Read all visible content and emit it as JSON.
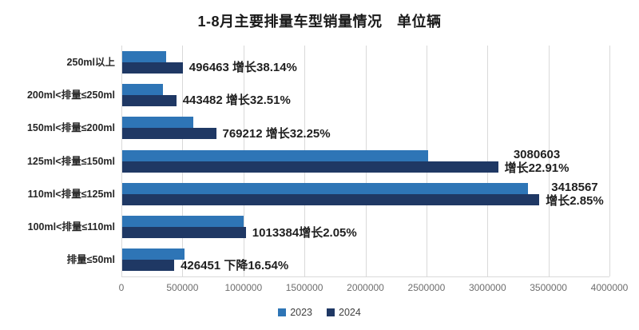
{
  "page": {
    "background": "#ffffff"
  },
  "chart_data": {
    "type": "bar",
    "orientation": "horizontal",
    "title": "1-8月主要排量车型销量情况　单位辆",
    "categories": [
      "250ml以上",
      "200ml<排量≤250ml",
      "150ml<排量≤200ml",
      "125ml<排量≤150ml",
      "110ml<排量≤125ml",
      "100ml<排量≤110ml",
      "排量≤50ml"
    ],
    "series": [
      {
        "name": "2023",
        "color": "#2E75B6",
        "values_estimated_from_bars": true,
        "values": [
          359390,
          334678,
          581635,
          2506389,
          3323838,
          993027,
          510964
        ]
      },
      {
        "name": "2024",
        "color": "#1F3864",
        "values": [
          496463,
          443482,
          769212,
          3080603,
          3418567,
          1013384,
          426451
        ]
      }
    ],
    "data_labels": [
      {
        "lines": [
          "496463 增长38.14%"
        ]
      },
      {
        "lines": [
          "443482 增长32.51%"
        ]
      },
      {
        "lines": [
          "769212 增长32.25%"
        ]
      },
      {
        "lines": [
          "3080603",
          "增长22.91%"
        ]
      },
      {
        "lines": [
          "3418567",
          "增长2.85%"
        ]
      },
      {
        "lines": [
          "1013384增长2.05%"
        ]
      },
      {
        "lines": [
          "426451 下降16.54%"
        ]
      }
    ],
    "x_tick_labels": [
      "0",
      "500000",
      "1000000",
      "1500000",
      "2000000",
      "2500000",
      "3000000",
      "3500000",
      "4000000"
    ],
    "x_ticks": [
      0,
      500000,
      1000000,
      1500000,
      2000000,
      2500000,
      3000000,
      3500000,
      4000000
    ],
    "xlim": [
      0,
      4000000
    ],
    "grid": true,
    "legend_position": "bottom",
    "legend": [
      {
        "label": "2023",
        "color": "#2E75B6"
      },
      {
        "label": "2024",
        "color": "#1F3864"
      }
    ]
  },
  "colors": {
    "gridline": "#d9d9d9",
    "axis_tick_text": "#6e6e6e",
    "data_label_text": "#1f1f1f",
    "title_text": "#1a1a1a",
    "category_text": "#262626",
    "background": "#ffffff"
  }
}
